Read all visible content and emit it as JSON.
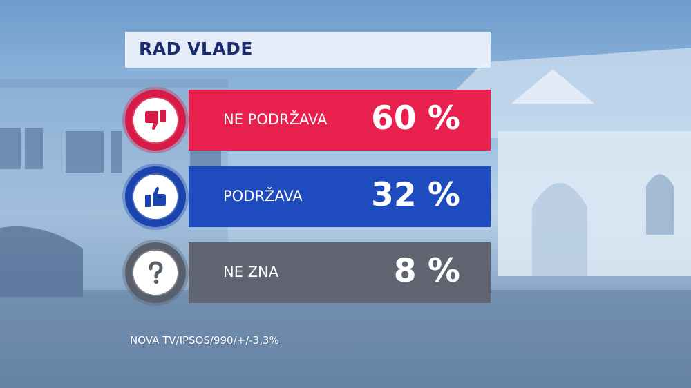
{
  "header": {
    "title": "RAD VLADE"
  },
  "chart_data": {
    "type": "bar",
    "categories": [
      "NE PODRŽAVA",
      "PODRŽAVA",
      "NE ZNA"
    ],
    "values": [
      60,
      32,
      8
    ],
    "value_labels": [
      "60 %",
      "32 %",
      "8 %"
    ],
    "title": "RAD VLADE",
    "icons": [
      "thumbs-down-icon",
      "thumbs-up-icon",
      "question-icon"
    ],
    "colors": {
      "bars": [
        "#e8204e",
        "#1e4bbd",
        "#5f6470"
      ],
      "circles": [
        "#d81a47",
        "#1a43ad",
        "#5a5f6c"
      ],
      "icon_colors": [
        "#d81a47",
        "#1a43ad",
        "#5a5f6c"
      ]
    }
  },
  "footer": {
    "source": "NOVA TV/IPSOS/990/+/-3,3%"
  }
}
